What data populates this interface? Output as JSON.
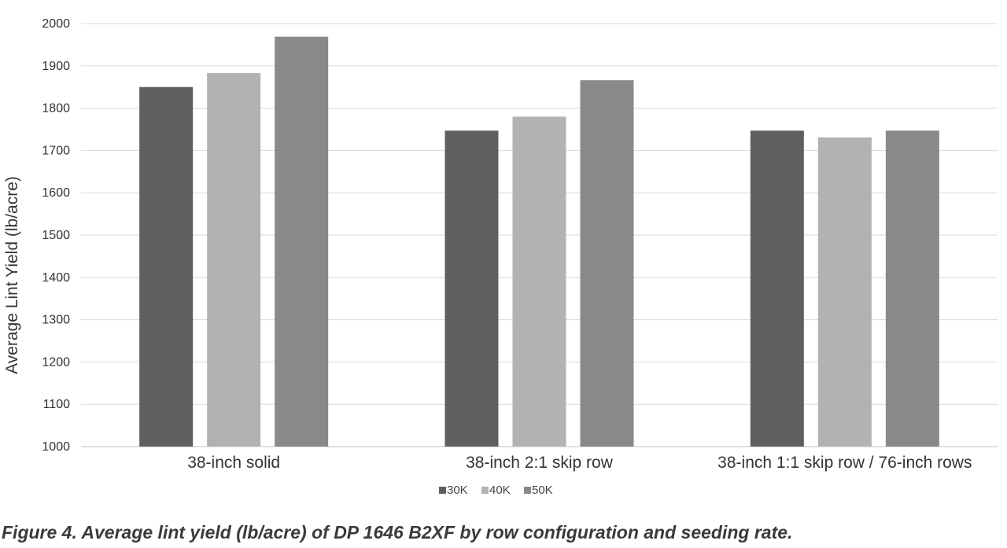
{
  "chart_data": {
    "type": "bar",
    "title": "",
    "xlabel": "",
    "ylabel": "Average Lint Yield (lb/acre)",
    "ylim": [
      1000,
      2000
    ],
    "yticks": [
      1000,
      1100,
      1200,
      1300,
      1400,
      1500,
      1600,
      1700,
      1800,
      1900,
      2000
    ],
    "grid": true,
    "legend_position": "bottom",
    "categories": [
      "38-inch solid",
      "38-inch 2:1 skip row",
      "38-inch 1:1 skip row / 76-inch rows"
    ],
    "series": [
      {
        "name": "30K",
        "color": "#5f5f5f",
        "values": [
          1850,
          1747,
          1747
        ]
      },
      {
        "name": "40K",
        "color": "#b2b2b2",
        "values": [
          1883,
          1780,
          1731
        ]
      },
      {
        "name": "50K",
        "color": "#898989",
        "values": [
          1969,
          1866,
          1747
        ]
      }
    ]
  },
  "caption": "Figure 4. Average lint yield (lb/acre) of DP 1646 B2XF by row configuration and seeding rate."
}
